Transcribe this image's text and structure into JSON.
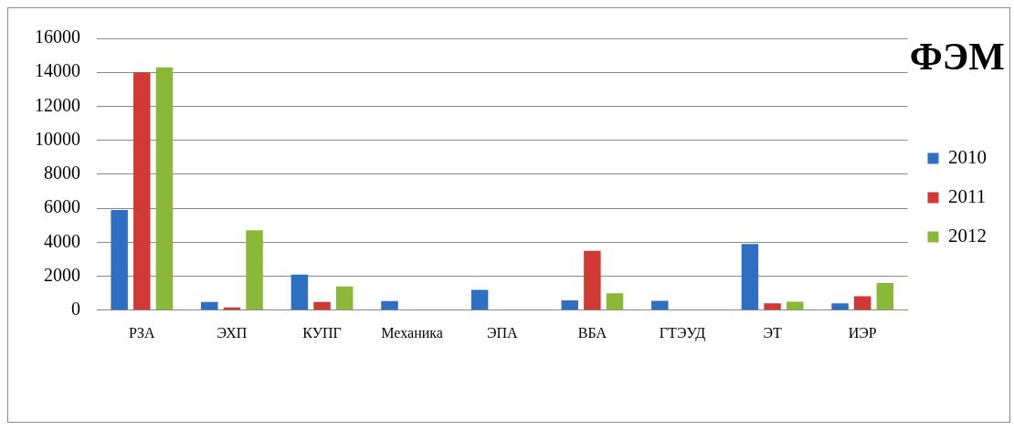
{
  "chart_data": {
    "type": "bar",
    "title": "ФЭМ",
    "categories": [
      "РЗА",
      "ЭХП",
      "КУПГ",
      "Механика",
      "ЭПА",
      "ВБА",
      "ГТЭУД",
      "ЭТ",
      "ИЭР"
    ],
    "series": [
      {
        "name": "2010",
        "color": "#2e6fc4",
        "values": [
          5900,
          480,
          2100,
          540,
          1200,
          580,
          560,
          3900,
          400
        ]
      },
      {
        "name": "2011",
        "color": "#d13a34",
        "values": [
          14000,
          160,
          480,
          null,
          null,
          3500,
          null,
          400,
          820
        ]
      },
      {
        "name": "2012",
        "color": "#8cb83a",
        "values": [
          14300,
          4700,
          1400,
          null,
          null,
          1000,
          null,
          500,
          1600
        ]
      }
    ],
    "ylim": [
      0,
      16000
    ],
    "yticks": [
      0,
      2000,
      4000,
      6000,
      8000,
      10000,
      12000,
      14000,
      16000
    ],
    "grid": "y",
    "legend": "right"
  }
}
